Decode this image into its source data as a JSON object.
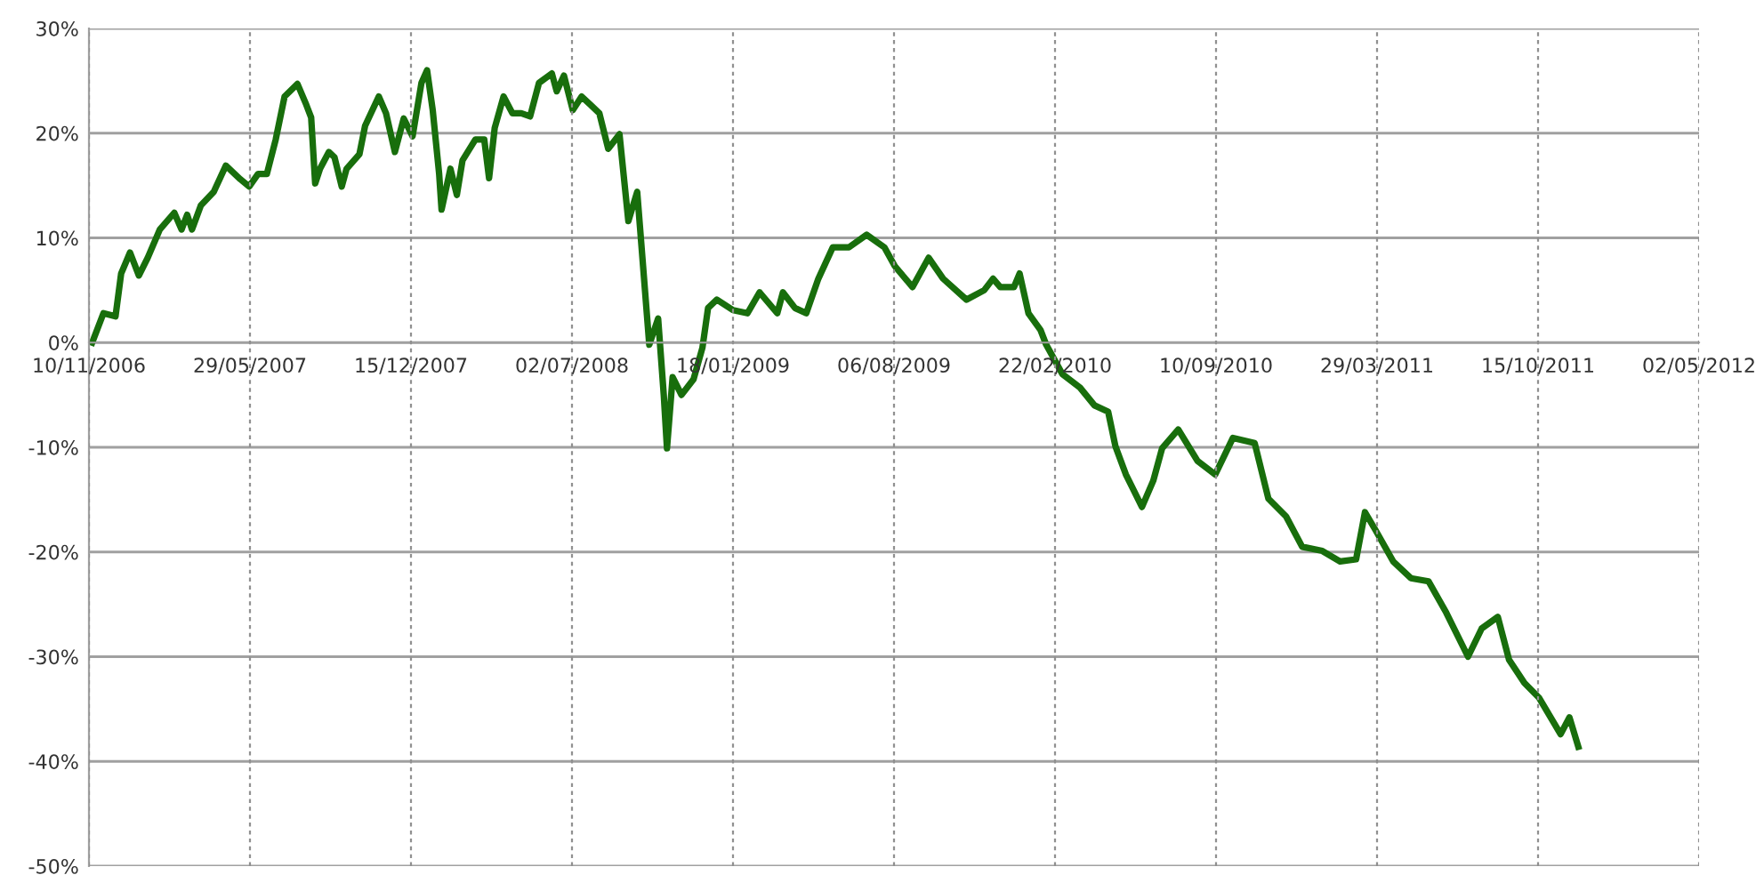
{
  "chart_data": {
    "type": "line",
    "x": [
      "2006-11-14",
      "2006-11-28",
      "2006-12-13",
      "2006-12-20",
      "2006-12-31",
      "2007-01-11",
      "2007-01-22",
      "2007-02-06",
      "2007-02-24",
      "2007-03-05",
      "2007-03-12",
      "2007-03-18",
      "2007-03-29",
      "2007-04-14",
      "2007-04-29",
      "2007-05-17",
      "2007-05-28",
      "2007-06-08",
      "2007-06-19",
      "2007-06-30",
      "2007-07-11",
      "2007-07-27",
      "2007-08-07",
      "2007-08-13",
      "2007-08-18",
      "2007-08-24",
      "2007-09-04",
      "2007-09-11",
      "2007-09-20",
      "2007-09-26",
      "2007-10-12",
      "2007-10-19",
      "2007-11-05",
      "2007-11-14",
      "2007-11-25",
      "2007-12-06",
      "2007-12-17",
      "2007-12-28",
      "2008-01-04",
      "2008-01-11",
      "2008-01-19",
      "2008-01-22",
      "2008-02-02",
      "2008-02-10",
      "2008-02-17",
      "2008-03-04",
      "2008-03-15",
      "2008-03-21",
      "2008-03-28",
      "2008-04-08",
      "2008-04-19",
      "2008-04-30",
      "2008-05-11",
      "2008-05-22",
      "2008-06-07",
      "2008-06-13",
      "2008-06-22",
      "2008-07-03",
      "2008-07-14",
      "2008-07-25",
      "2008-08-05",
      "2008-08-16",
      "2008-08-30",
      "2008-09-10",
      "2008-09-21",
      "2008-10-06",
      "2008-10-17",
      "2008-10-24",
      "2008-10-28",
      "2008-11-04",
      "2008-11-15",
      "2008-11-30",
      "2008-12-11",
      "2008-12-18",
      "2008-12-29",
      "2009-01-18",
      "2009-02-05",
      "2009-02-20",
      "2009-03-14",
      "2009-03-21",
      "2009-04-05",
      "2009-04-19",
      "2009-05-04",
      "2009-05-22",
      "2009-06-11",
      "2009-07-03",
      "2009-07-25",
      "2009-08-07",
      "2009-08-29",
      "2009-09-18",
      "2009-10-06",
      "2009-11-04",
      "2009-11-26",
      "2009-12-07",
      "2009-12-16",
      "2010-01-02",
      "2010-01-09",
      "2010-01-20",
      "2010-02-04",
      "2010-02-11",
      "2010-03-03",
      "2010-03-25",
      "2010-04-12",
      "2010-04-29",
      "2010-05-08",
      "2010-05-21",
      "2010-06-10",
      "2010-06-24",
      "2010-07-05",
      "2010-07-25",
      "2010-08-18",
      "2010-09-09",
      "2010-10-01",
      "2010-10-28",
      "2010-11-14",
      "2010-12-06",
      "2010-12-26",
      "2011-01-20",
      "2011-02-11",
      "2011-03-03",
      "2011-03-14",
      "2011-03-27",
      "2011-04-18",
      "2011-05-10",
      "2011-06-01",
      "2011-06-23",
      "2011-07-20",
      "2011-08-06",
      "2011-08-26",
      "2011-09-09",
      "2011-09-28",
      "2011-10-16",
      "2011-11-12",
      "2011-11-23",
      "2011-12-04"
    ],
    "series": [
      {
        "color": "#186e0c",
        "values": [
          0,
          2.8,
          2.5,
          6.6,
          8.6,
          6.4,
          8.1,
          10.8,
          12.4,
          10.8,
          12.2,
          10.8,
          13.1,
          14.4,
          16.9,
          15.6,
          14.9,
          16.1,
          16.1,
          19.4,
          23.5,
          24.7,
          22.7,
          21.5,
          15.2,
          16.6,
          18.2,
          17.7,
          14.9,
          16.6,
          18,
          20.7,
          23.5,
          21.9,
          18.2,
          21.4,
          19.7,
          24.8,
          26,
          22.2,
          16.1,
          12.7,
          16.6,
          14.1,
          17.4,
          19.4,
          19.4,
          15.7,
          20.5,
          23.5,
          21.9,
          21.9,
          21.6,
          24.8,
          25.7,
          24,
          25.5,
          22.2,
          23.5,
          22.7,
          21.9,
          18.5,
          19.9,
          11.6,
          14.4,
          -0.2,
          2.3,
          -5,
          -10.1,
          -3.3,
          -5,
          -3.5,
          -0.5,
          3.3,
          4.1,
          3.1,
          2.8,
          4.8,
          2.8,
          4.8,
          3.3,
          2.8,
          6.1,
          9.1,
          9.1,
          10.3,
          9.1,
          7.3,
          5.3,
          8.1,
          6.1,
          4.1,
          5,
          6.1,
          5.3,
          5.3,
          6.6,
          2.8,
          1.2,
          -0.2,
          -3,
          -4.3,
          -6,
          -6.6,
          -9.9,
          -12.6,
          -15.7,
          -13.2,
          -10.1,
          -8.3,
          -11.3,
          -12.6,
          -9.1,
          -9.6,
          -14.9,
          -16.6,
          -19.5,
          -19.9,
          -20.9,
          -20.7,
          -16.2,
          -17.9,
          -20.9,
          -22.5,
          -22.8,
          -25.8,
          -30,
          -27.3,
          -26.2,
          -30.3,
          -32.5,
          -33.9,
          -37.4,
          -35.8,
          -38.6
        ]
      }
    ],
    "xlim": [
      "2006-11-10",
      "2012-05-02"
    ],
    "xticks": [
      {
        "value": "2006-11-10",
        "label": "10/11/2006"
      },
      {
        "value": "2007-05-29",
        "label": "29/05/2007"
      },
      {
        "value": "2007-12-15",
        "label": "15/12/2007"
      },
      {
        "value": "2008-07-02",
        "label": "02/07/2008"
      },
      {
        "value": "2009-01-18",
        "label": "18/01/2009"
      },
      {
        "value": "2009-08-06",
        "label": "06/08/2009"
      },
      {
        "value": "2010-02-22",
        "label": "22/02/2010"
      },
      {
        "value": "2010-09-10",
        "label": "10/09/2010"
      },
      {
        "value": "2011-03-29",
        "label": "29/03/2011"
      },
      {
        "value": "2011-10-15",
        "label": "15/10/2011"
      },
      {
        "value": "2012-05-02",
        "label": "02/05/2012"
      }
    ],
    "ylim": [
      -50,
      30
    ],
    "yticks": [
      {
        "value": -50,
        "label": "-50%"
      },
      {
        "value": -40,
        "label": "-40%"
      },
      {
        "value": -30,
        "label": "-30%"
      },
      {
        "value": -20,
        "label": "-20%"
      },
      {
        "value": -10,
        "label": "-10%"
      },
      {
        "value": 0,
        "label": "0%"
      },
      {
        "value": 10,
        "label": "10%"
      },
      {
        "value": 20,
        "label": "20%"
      },
      {
        "value": 30,
        "label": "30%"
      }
    ],
    "grid": true,
    "marker": "none",
    "line_style": "solid"
  }
}
